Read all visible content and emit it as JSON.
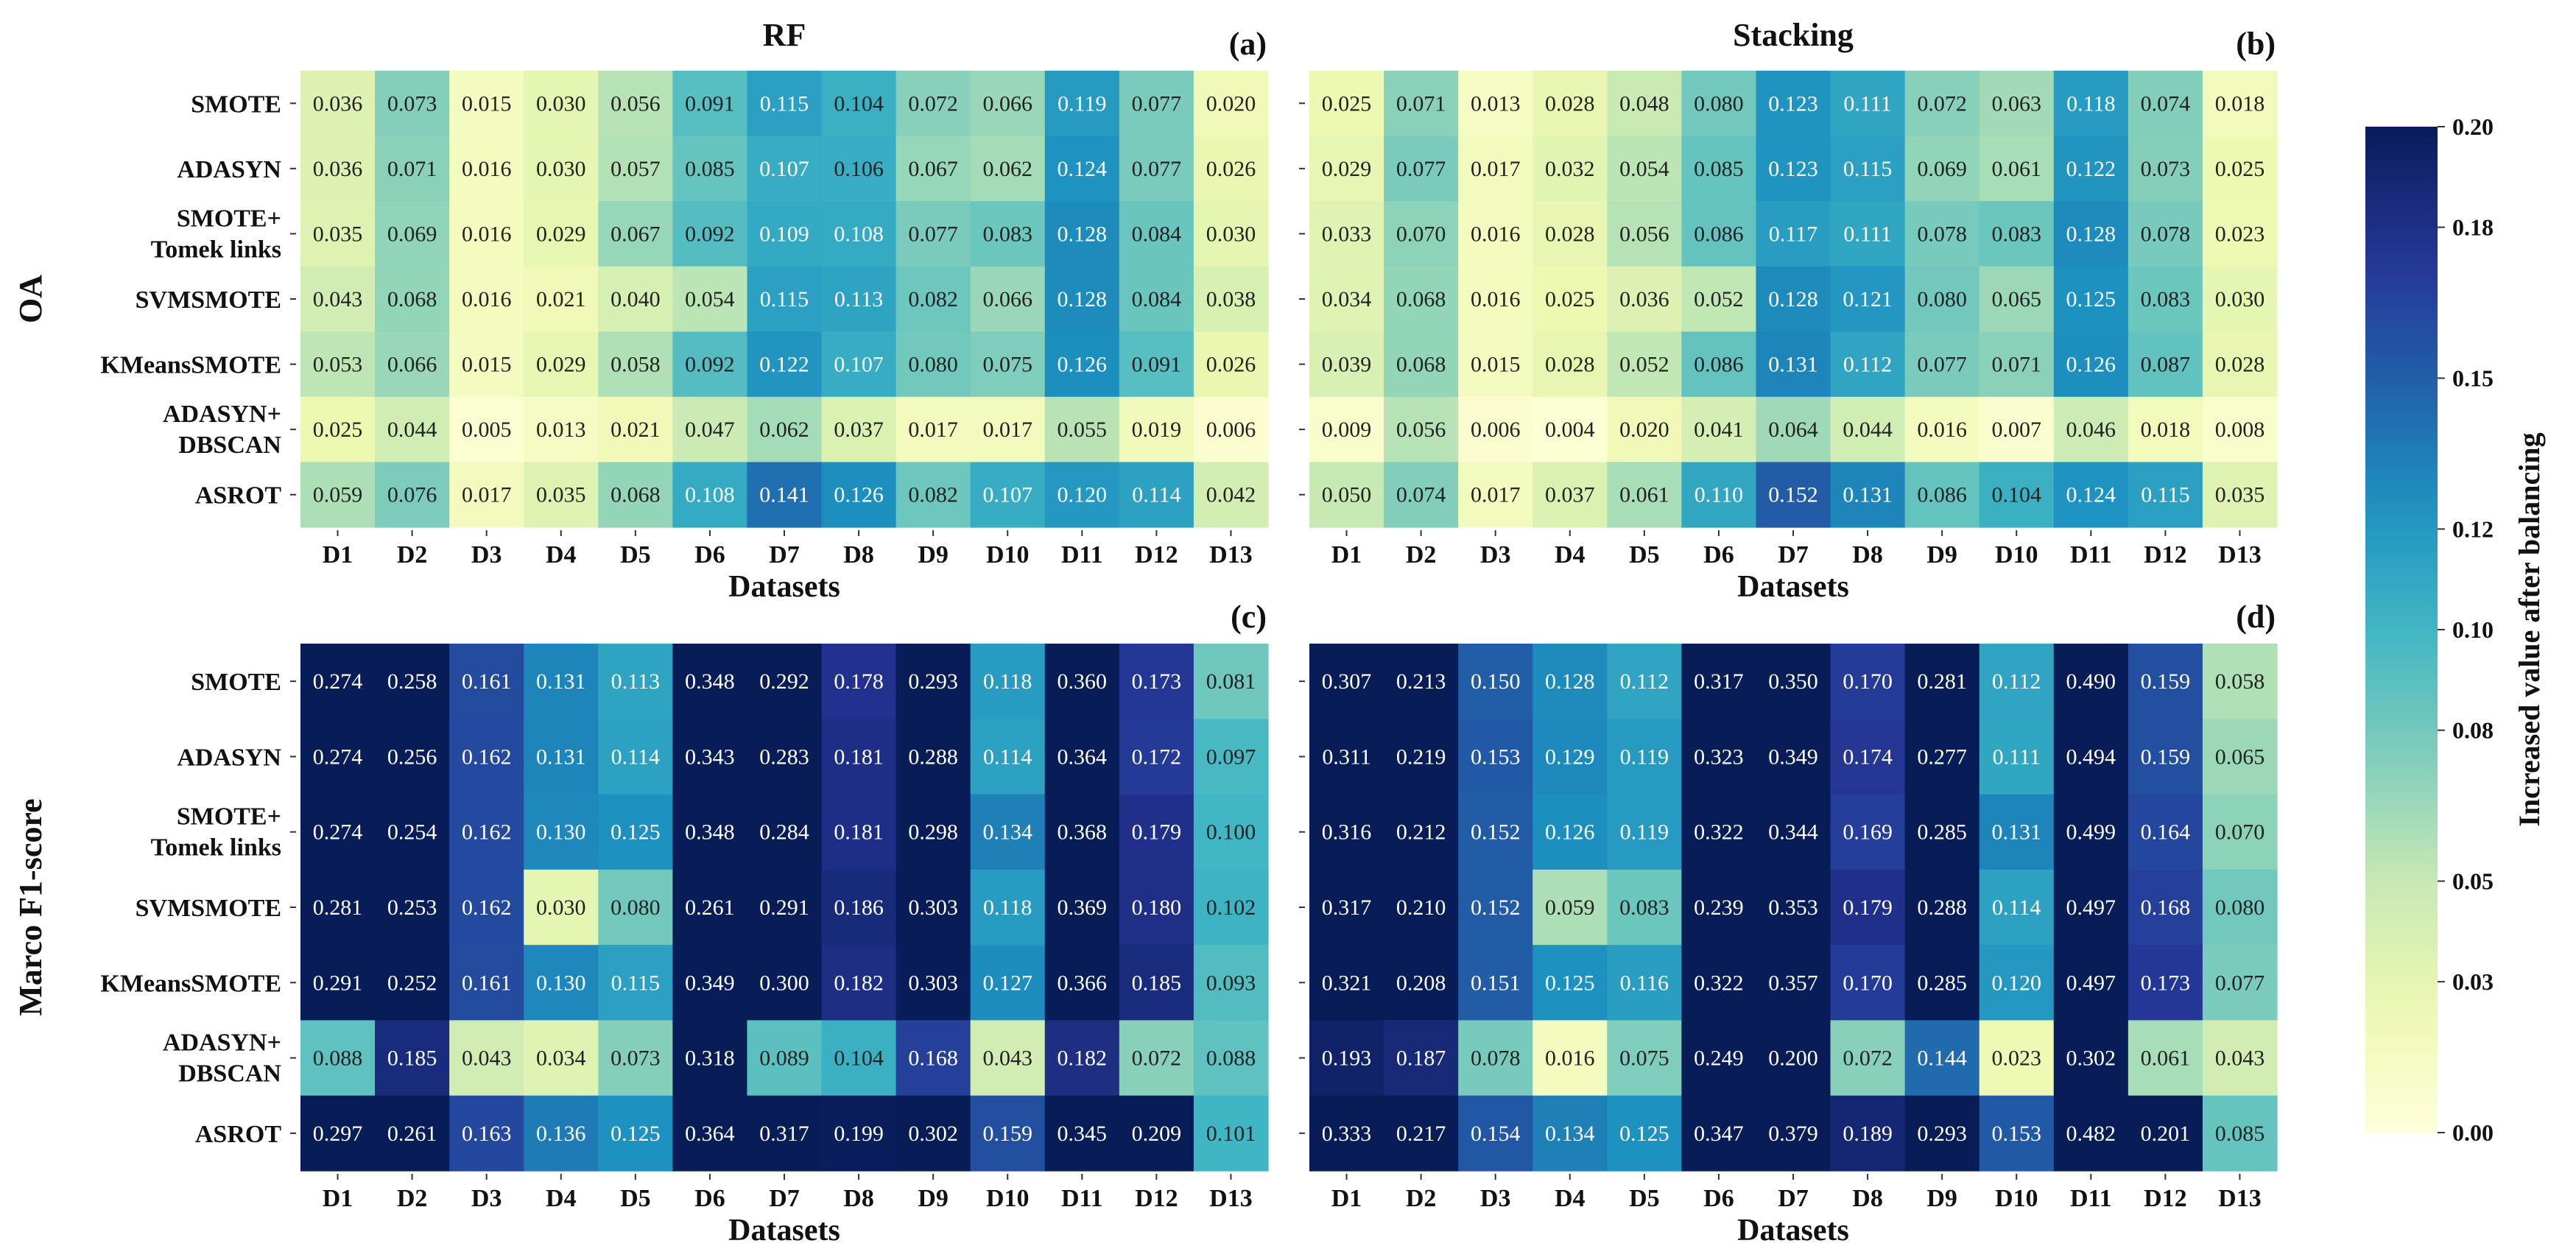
{
  "chart_data": {
    "type": "heatmap",
    "datasets": [
      "D1",
      "D2",
      "D3",
      "D4",
      "D5",
      "D6",
      "D7",
      "D8",
      "D9",
      "D10",
      "D11",
      "D12",
      "D13"
    ],
    "methods": [
      "SMOTE",
      "ADASYN",
      "SMOTE+ Tomek links",
      "SVMSMOTE",
      "KMeansSMOTE",
      "ADASYN+ DBSCAN",
      "ASROT"
    ],
    "xlabel": "Datasets",
    "row_titles": [
      "OA",
      "Marco F1-score"
    ],
    "colorbar": {
      "label": "Increased value after balancing",
      "min": 0.0,
      "max": 0.2,
      "ticks": [
        "0.00",
        "0.03",
        "0.05",
        "0.08",
        "0.10",
        "0.12",
        "0.15",
        "0.18",
        "0.20"
      ],
      "colormap": "YlGnBu"
    },
    "panels": [
      {
        "tag": "(a)",
        "title": "RF",
        "metric": "OA",
        "values": [
          [
            0.036,
            0.073,
            0.015,
            0.03,
            0.056,
            0.091,
            0.115,
            0.104,
            0.072,
            0.066,
            0.119,
            0.077,
            0.02
          ],
          [
            0.036,
            0.071,
            0.016,
            0.03,
            0.057,
            0.085,
            0.107,
            0.106,
            0.067,
            0.062,
            0.124,
            0.077,
            0.026
          ],
          [
            0.035,
            0.069,
            0.016,
            0.029,
            0.067,
            0.092,
            0.109,
            0.108,
            0.077,
            0.083,
            0.128,
            0.084,
            0.03
          ],
          [
            0.043,
            0.068,
            0.016,
            0.021,
            0.04,
            0.054,
            0.115,
            0.113,
            0.082,
            0.066,
            0.128,
            0.084,
            0.038
          ],
          [
            0.053,
            0.066,
            0.015,
            0.029,
            0.058,
            0.092,
            0.122,
            0.107,
            0.08,
            0.075,
            0.126,
            0.091,
            0.026
          ],
          [
            0.025,
            0.044,
            0.005,
            0.013,
            0.021,
            0.047,
            0.062,
            0.037,
            0.017,
            0.017,
            0.055,
            0.019,
            0.006
          ],
          [
            0.059,
            0.076,
            0.017,
            0.035,
            0.068,
            0.108,
            0.141,
            0.126,
            0.082,
            0.107,
            0.12,
            0.114,
            0.042
          ]
        ]
      },
      {
        "tag": "(b)",
        "title": "Stacking",
        "metric": "OA",
        "values": [
          [
            0.025,
            0.071,
            0.013,
            0.028,
            0.048,
            0.08,
            0.123,
            0.111,
            0.072,
            0.063,
            0.118,
            0.074,
            0.018
          ],
          [
            0.029,
            0.077,
            0.017,
            0.032,
            0.054,
            0.085,
            0.123,
            0.115,
            0.069,
            0.061,
            0.122,
            0.073,
            0.025
          ],
          [
            0.033,
            0.07,
            0.016,
            0.028,
            0.056,
            0.086,
            0.117,
            0.111,
            0.078,
            0.083,
            0.128,
            0.078,
            0.023
          ],
          [
            0.034,
            0.068,
            0.016,
            0.025,
            0.036,
            0.052,
            0.128,
            0.121,
            0.08,
            0.065,
            0.125,
            0.083,
            0.03
          ],
          [
            0.039,
            0.068,
            0.015,
            0.028,
            0.052,
            0.086,
            0.131,
            0.112,
            0.077,
            0.071,
            0.126,
            0.087,
            0.028
          ],
          [
            0.009,
            0.056,
            0.006,
            0.004,
            0.02,
            0.041,
            0.064,
            0.044,
            0.016,
            0.007,
            0.046,
            0.018,
            0.008
          ],
          [
            0.05,
            0.074,
            0.017,
            0.037,
            0.061,
            0.11,
            0.152,
            0.131,
            0.086,
            0.104,
            0.124,
            0.115,
            0.035
          ]
        ]
      },
      {
        "tag": "(c)",
        "title": "",
        "metric": "Marco F1-score",
        "values": [
          [
            0.274,
            0.258,
            0.161,
            0.131,
            0.113,
            0.348,
            0.292,
            0.178,
            0.293,
            0.118,
            0.36,
            0.173,
            0.081
          ],
          [
            0.274,
            0.256,
            0.162,
            0.131,
            0.114,
            0.343,
            0.283,
            0.181,
            0.288,
            0.114,
            0.364,
            0.172,
            0.097
          ],
          [
            0.274,
            0.254,
            0.162,
            0.13,
            0.125,
            0.348,
            0.284,
            0.181,
            0.298,
            0.134,
            0.368,
            0.179,
            0.1
          ],
          [
            0.281,
            0.253,
            0.162,
            0.03,
            0.08,
            0.261,
            0.291,
            0.186,
            0.303,
            0.118,
            0.369,
            0.18,
            0.102
          ],
          [
            0.291,
            0.252,
            0.161,
            0.13,
            0.115,
            0.349,
            0.3,
            0.182,
            0.303,
            0.127,
            0.366,
            0.185,
            0.093
          ],
          [
            0.088,
            0.185,
            0.043,
            0.034,
            0.073,
            0.318,
            0.089,
            0.104,
            0.168,
            0.043,
            0.182,
            0.072,
            0.088
          ],
          [
            0.297,
            0.261,
            0.163,
            0.136,
            0.125,
            0.364,
            0.317,
            0.199,
            0.302,
            0.159,
            0.345,
            0.209,
            0.101
          ]
        ]
      },
      {
        "tag": "(d)",
        "title": "",
        "metric": "Marco F1-score",
        "values": [
          [
            0.307,
            0.213,
            0.15,
            0.128,
            0.112,
            0.317,
            0.35,
            0.17,
            0.281,
            0.112,
            0.49,
            0.159,
            0.058
          ],
          [
            0.311,
            0.219,
            0.153,
            0.129,
            0.119,
            0.323,
            0.349,
            0.174,
            0.277,
            0.111,
            0.494,
            0.159,
            0.065
          ],
          [
            0.316,
            0.212,
            0.152,
            0.126,
            0.119,
            0.322,
            0.344,
            0.169,
            0.285,
            0.131,
            0.499,
            0.164,
            0.07
          ],
          [
            0.317,
            0.21,
            0.152,
            0.059,
            0.083,
            0.239,
            0.353,
            0.179,
            0.288,
            0.114,
            0.497,
            0.168,
            0.08
          ],
          [
            0.321,
            0.208,
            0.151,
            0.125,
            0.116,
            0.322,
            0.357,
            0.17,
            0.285,
            0.12,
            0.497,
            0.173,
            0.077
          ],
          [
            0.193,
            0.187,
            0.078,
            0.016,
            0.075,
            0.249,
            0.2,
            0.072,
            0.144,
            0.023,
            0.302,
            0.061,
            0.043
          ],
          [
            0.333,
            0.217,
            0.154,
            0.134,
            0.125,
            0.347,
            0.379,
            0.189,
            0.293,
            0.153,
            0.482,
            0.201,
            0.085
          ]
        ]
      }
    ]
  }
}
